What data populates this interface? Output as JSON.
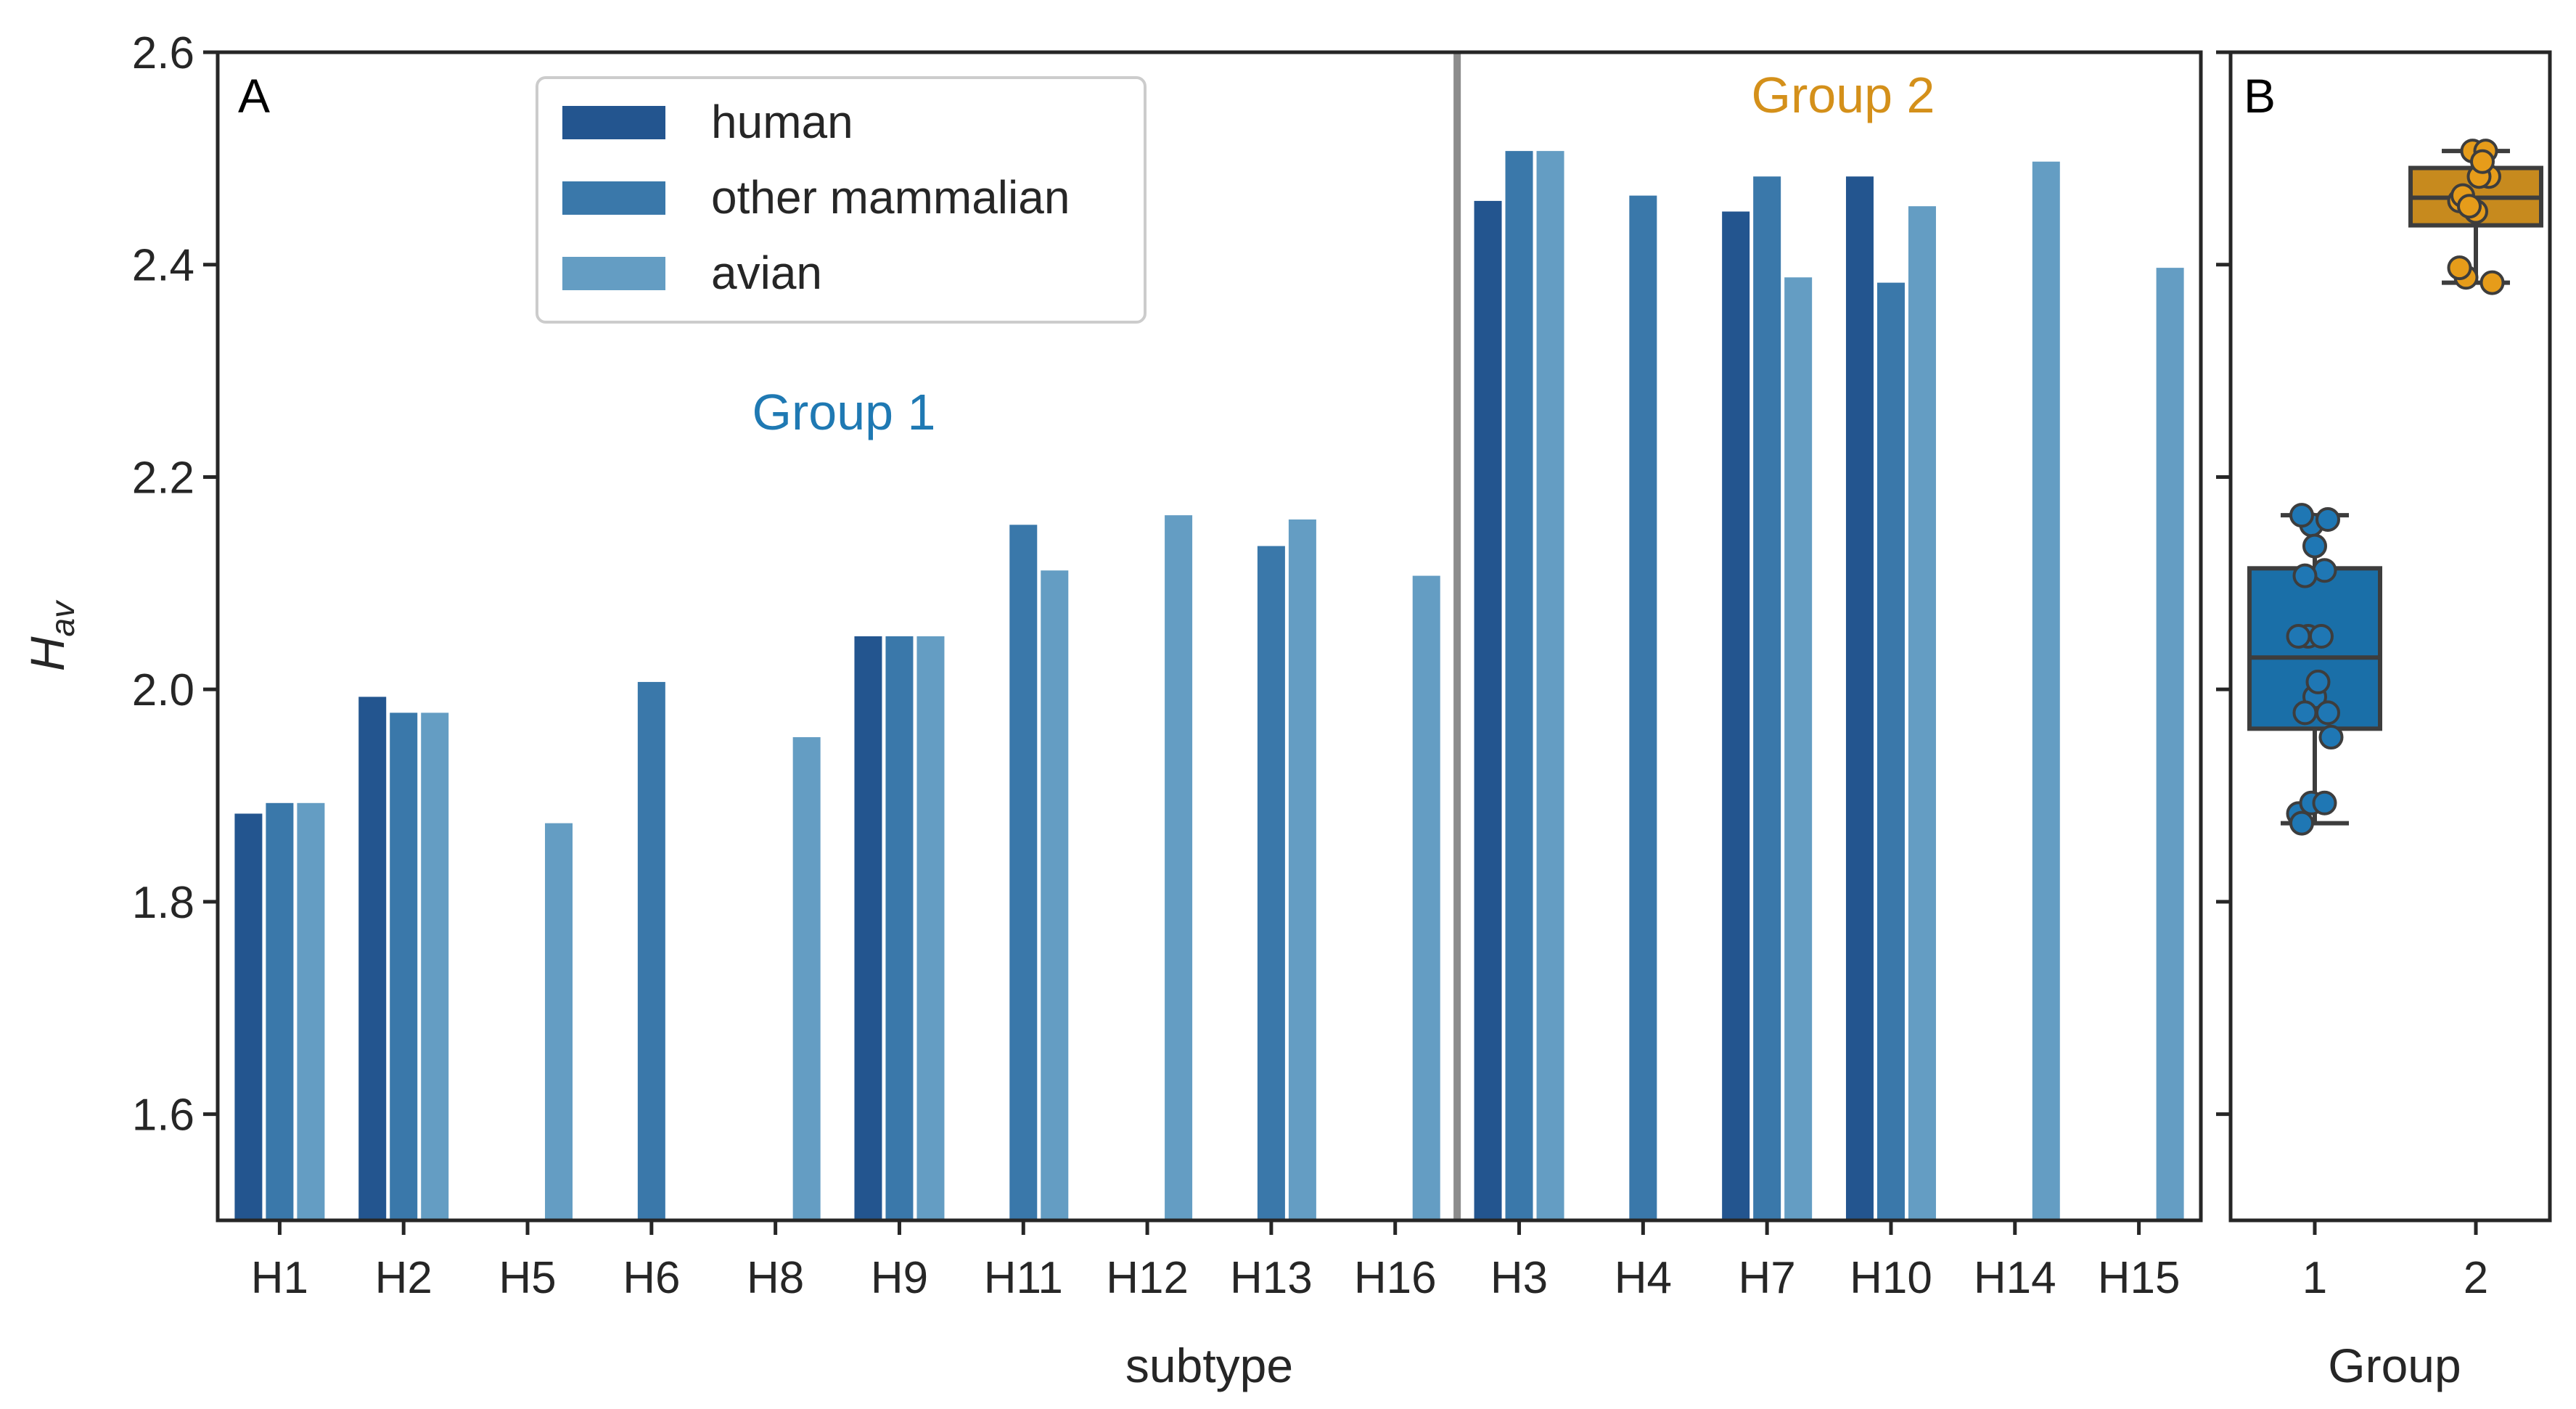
{
  "chart_data": [
    {
      "panel": "A",
      "type": "bar",
      "xlabel": "subtype",
      "ylabel": "H",
      "ylabel_subscript": "av",
      "ylim": [
        1.5,
        2.6
      ],
      "yticks": [
        "1.6",
        "1.8",
        "2.0",
        "2.2",
        "2.4",
        "2.6"
      ],
      "categories": [
        "H1",
        "H2",
        "H5",
        "H6",
        "H8",
        "H9",
        "H11",
        "H12",
        "H13",
        "H16",
        "H3",
        "H4",
        "H7",
        "H10",
        "H14",
        "H15"
      ],
      "series": [
        {
          "name": "human",
          "color": "#23558f",
          "values": [
            1.883,
            1.993,
            null,
            null,
            null,
            2.05,
            null,
            null,
            null,
            null,
            2.46,
            null,
            2.45,
            2.483,
            null,
            null
          ]
        },
        {
          "name": "other mammalian",
          "color": "#3a78aa",
          "values": [
            1.893,
            1.978,
            null,
            2.007,
            null,
            2.05,
            2.155,
            null,
            2.135,
            null,
            2.507,
            2.465,
            2.483,
            2.383,
            null,
            null
          ]
        },
        {
          "name": "avian",
          "color": "#649dc3",
          "values": [
            1.893,
            1.978,
            1.874,
            null,
            1.955,
            2.05,
            2.112,
            2.164,
            2.16,
            2.107,
            2.507,
            null,
            2.388,
            2.455,
            2.497,
            2.397
          ]
        }
      ],
      "legend": {
        "placement": "top-left",
        "entries": [
          "human",
          "other mammalian",
          "avian"
        ]
      },
      "divider_after_category": "H16",
      "annotations": [
        {
          "text": "Group 1",
          "color": "#1f79b3"
        },
        {
          "text": "Group 2",
          "color": "#d4901a"
        }
      ]
    },
    {
      "panel": "B",
      "type": "box",
      "xlabel": "Group",
      "categories": [
        "1",
        "2"
      ],
      "ylim": [
        1.5,
        2.6
      ],
      "boxes": [
        {
          "name": "1",
          "color": "#1a6fa8",
          "point_color": "#1f77b4",
          "q1": 1.963,
          "median": 2.03,
          "q3": 2.114,
          "whisker_low": 1.874,
          "whisker_high": 2.164,
          "points": [
            1.883,
            1.893,
            1.893,
            1.874,
            1.993,
            1.978,
            1.978,
            2.007,
            1.955,
            2.05,
            2.05,
            2.05,
            2.155,
            2.112,
            2.164,
            2.135,
            2.16,
            2.107
          ]
        },
        {
          "name": "2",
          "color": "#c78a1e",
          "point_color": "#e69c1a",
          "q1": 2.437,
          "median": 2.463,
          "q3": 2.491,
          "whisker_low": 2.383,
          "whisker_high": 2.507,
          "points": [
            2.46,
            2.507,
            2.507,
            2.465,
            2.45,
            2.483,
            2.388,
            2.483,
            2.383,
            2.455,
            2.497,
            2.397
          ]
        }
      ]
    }
  ]
}
